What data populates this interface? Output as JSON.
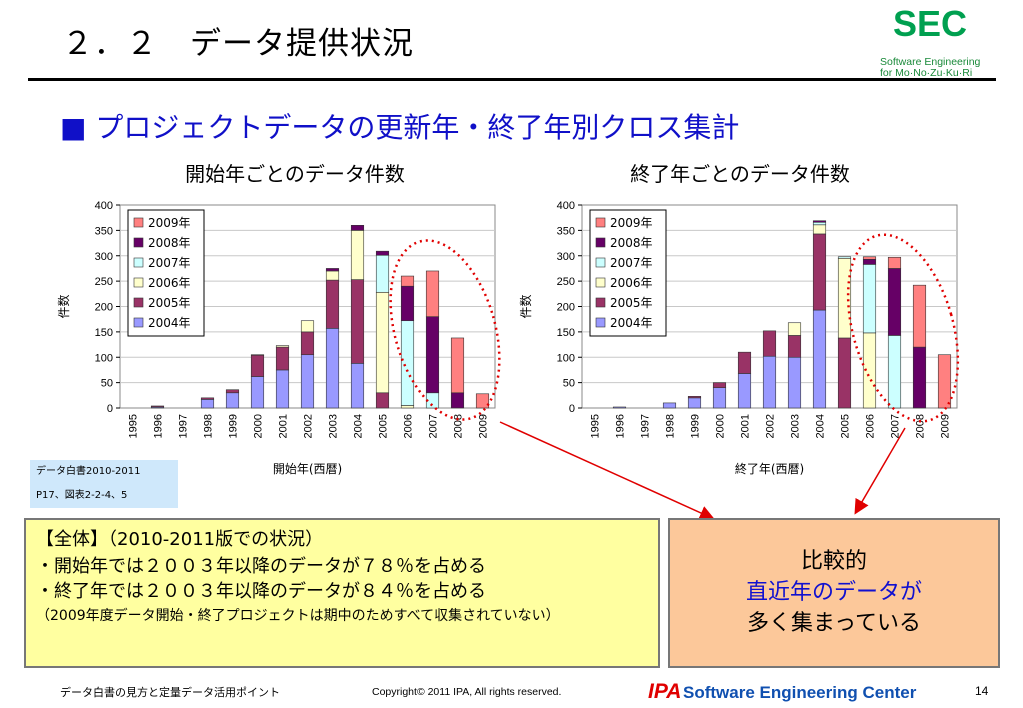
{
  "slide": {
    "title": "２．２　データ提供状況",
    "subheading": "■ プロジェクトデータの更新年・終了年別クロス集計"
  },
  "logo": {
    "big": "SEC",
    "line1": "Software Engineering",
    "line2": "for Mo·No·Zu·Ku·Ri"
  },
  "colors": {
    "s2004": "#9999ff",
    "s2005": "#993366",
    "s2006": "#ffffcc",
    "s2007": "#ccffff",
    "s2008": "#660066",
    "s2009": "#ff8080",
    "highlight": "#e00000"
  },
  "chart_data": [
    {
      "type": "bar",
      "stacked": true,
      "title": "開始年ごとのデータ件数",
      "xlabel": "開始年(西暦)",
      "ylabel": "件数",
      "ylim": [
        0,
        400
      ],
      "yticks": [
        "0",
        "50",
        "100",
        "150",
        "200",
        "250",
        "300",
        "350",
        "400"
      ],
      "categories": [
        "1995",
        "1996",
        "1997",
        "1998",
        "1999",
        "2000",
        "2001",
        "2002",
        "2003",
        "2004",
        "2005",
        "2006",
        "2007",
        "2008",
        "2009"
      ],
      "legend_position": "top-left",
      "grid": true,
      "series": [
        {
          "name": "2004年",
          "values": [
            0,
            2,
            0,
            17,
            30,
            62,
            75,
            105,
            157,
            88,
            0,
            0,
            0,
            0,
            0
          ]
        },
        {
          "name": "2005年",
          "values": [
            0,
            2,
            0,
            3,
            6,
            42,
            45,
            45,
            95,
            165,
            30,
            0,
            0,
            0,
            0
          ]
        },
        {
          "name": "2006年",
          "values": [
            0,
            0,
            0,
            0,
            0,
            1,
            3,
            22,
            18,
            97,
            198,
            5,
            0,
            0,
            0
          ]
        },
        {
          "name": "2007年",
          "values": [
            0,
            0,
            0,
            0,
            0,
            0,
            0,
            0,
            0,
            0,
            73,
            167,
            30,
            0,
            0
          ]
        },
        {
          "name": "2008年",
          "values": [
            0,
            0,
            0,
            0,
            0,
            0,
            0,
            0,
            5,
            10,
            8,
            68,
            150,
            30,
            0
          ]
        },
        {
          "name": "2009年",
          "values": [
            0,
            0,
            0,
            0,
            0,
            0,
            0,
            0,
            0,
            0,
            0,
            20,
            90,
            108,
            28
          ]
        }
      ]
    },
    {
      "type": "bar",
      "stacked": true,
      "title": "終了年ごとのデータ件数",
      "xlabel": "終了年(西暦)",
      "ylabel": "件数",
      "ylim": [
        0,
        400
      ],
      "yticks": [
        "0",
        "50",
        "100",
        "150",
        "200",
        "250",
        "300",
        "350",
        "400"
      ],
      "categories": [
        "1995",
        "1996",
        "1997",
        "1998",
        "1999",
        "2000",
        "2001",
        "2002",
        "2003",
        "2004",
        "2005",
        "2006",
        "2007",
        "2008",
        "2009"
      ],
      "legend_position": "top-left",
      "grid": true,
      "series": [
        {
          "name": "2004年",
          "values": [
            0,
            2,
            0,
            10,
            20,
            40,
            68,
            102,
            100,
            193,
            0,
            0,
            0,
            0,
            0
          ]
        },
        {
          "name": "2005年",
          "values": [
            0,
            0,
            0,
            0,
            3,
            10,
            42,
            50,
            43,
            150,
            138,
            0,
            0,
            0,
            0
          ]
        },
        {
          "name": "2006年",
          "values": [
            0,
            0,
            0,
            0,
            0,
            0,
            0,
            0,
            25,
            18,
            157,
            148,
            0,
            0,
            0
          ]
        },
        {
          "name": "2007年",
          "values": [
            0,
            0,
            0,
            0,
            0,
            0,
            0,
            0,
            0,
            5,
            3,
            135,
            143,
            0,
            0
          ]
        },
        {
          "name": "2008年",
          "values": [
            0,
            0,
            0,
            0,
            0,
            0,
            0,
            0,
            0,
            3,
            0,
            10,
            132,
            120,
            0
          ]
        },
        {
          "name": "2009年",
          "values": [
            0,
            0,
            0,
            0,
            0,
            0,
            0,
            0,
            0,
            0,
            0,
            5,
            22,
            122,
            105
          ]
        }
      ]
    }
  ],
  "reference": {
    "line1": "データ白書2010-2011",
    "line2": "P17、図表2-2-4、5"
  },
  "summary": {
    "heading": "【全体】（2010-2011版での状況）",
    "line1": "・開始年では２００３年以降のデータが７８％を占める",
    "line2": "・終了年では２００３年以降のデータが８４％を占める",
    "note": "（2009年度データ開始・終了プロジェクトは期中のためすべて収集されていない）"
  },
  "comparison": {
    "line1": "比較的",
    "line2": "直近年のデータが",
    "line3": "多く集まっている"
  },
  "footer": {
    "left": "データ白書の見方と定量データ活用ポイント",
    "copyright": "Copyright© 2011 IPA, All rights reserved.",
    "ipa": "IPA",
    "sec": "Software Engineering Center",
    "page": "14"
  }
}
